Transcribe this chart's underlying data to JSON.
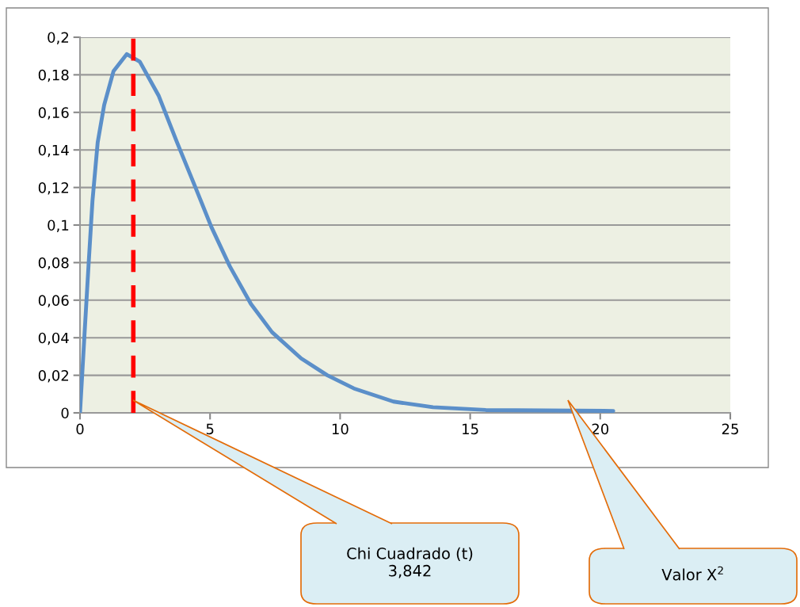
{
  "chart_data": {
    "type": "line",
    "series": [
      {
        "color": "#5b8fc9",
        "x": [
          0,
          0.17,
          0.33,
          0.48,
          0.68,
          0.93,
          1.29,
          1.8,
          2.3,
          3.02,
          3.73,
          4.44,
          5.05,
          5.76,
          6.57,
          7.38,
          8.5,
          9.51,
          10.53,
          12.05,
          13.57,
          15.6,
          20.5
        ],
        "values": [
          0,
          0.041,
          0.079,
          0.113,
          0.144,
          0.164,
          0.182,
          0.191,
          0.187,
          0.169,
          0.144,
          0.12,
          0.099,
          0.078,
          0.058,
          0.043,
          0.029,
          0.02,
          0.013,
          0.006,
          0.003,
          0.0015,
          0.001
        ]
      }
    ],
    "xlim": [
      0,
      25
    ],
    "xticks": [
      0,
      5,
      10,
      15,
      20,
      25
    ],
    "ylim": [
      0,
      0.2
    ],
    "yticks": [
      0,
      {
        "value": 0.02,
        "label": "0,02"
      },
      {
        "value": 0.04,
        "label": "0,04"
      },
      {
        "value": 0.06,
        "label": "0,06"
      },
      {
        "value": 0.08,
        "label": "0,08"
      },
      {
        "value": 0.1,
        "label": "0,1"
      },
      {
        "value": 0.12,
        "label": "0,12"
      },
      {
        "value": 0.14,
        "label": "0,14"
      },
      {
        "value": 0.16,
        "label": "0,16"
      },
      {
        "value": 0.18,
        "label": "0,18"
      },
      {
        "value": 0.2,
        "label": "0,2"
      }
    ],
    "grid": "y",
    "marker": "none",
    "line_style": "solid",
    "ref_lines": [
      {
        "axis": "x",
        "value": 2.05,
        "color": "#ff0000",
        "line_style": "dashed"
      }
    ],
    "annotations": [
      "Chi Cuadrado (t)\n3,842",
      "Valor X$^{2}$"
    ]
  }
}
